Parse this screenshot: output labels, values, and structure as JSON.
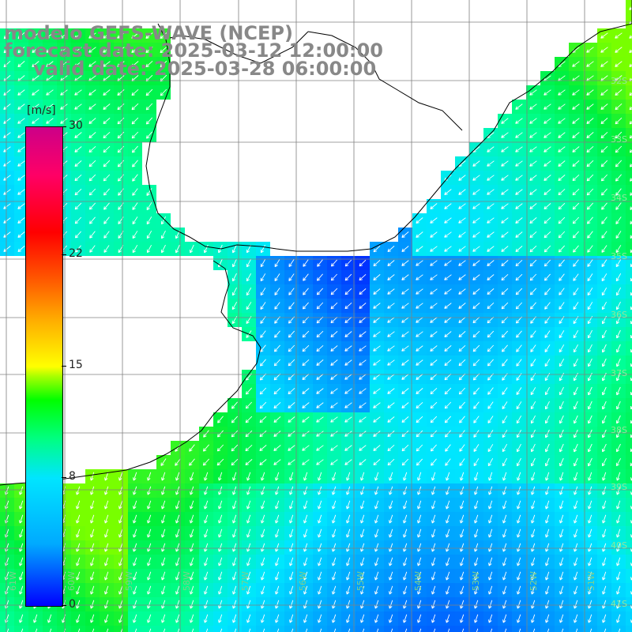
{
  "title": {
    "model": "modelo GEFS-WAVE (NCEP)",
    "forecast": "forecast date: 2025-03-12 12:00:00",
    "valid": "valid date: 2025-03-28 06:00:00"
  },
  "legend": {
    "units": "[m/s]",
    "ticks": [
      {
        "label": "30",
        "value": 30
      },
      {
        "label": "22",
        "value": 22
      },
      {
        "label": "15",
        "value": 15
      },
      {
        "label": "8",
        "value": 8
      },
      {
        "label": "0",
        "value": 0
      }
    ],
    "range": [
      0,
      30
    ],
    "colors": [
      "#0000ff",
      "#00aaff",
      "#00e5ff",
      "#00ff80",
      "#00ff00",
      "#ffff00",
      "#ff5a00",
      "#ff0000",
      "#cc0088"
    ]
  },
  "map": {
    "latitude_labels": [
      "32S",
      "33S",
      "34S",
      "35S",
      "36S",
      "37S",
      "38S",
      "39S",
      "40S",
      "41S"
    ],
    "longitude_labels": [
      "61W",
      "60W",
      "59W",
      "58W",
      "57W",
      "56W",
      "55W",
      "54W",
      "53W",
      "52W",
      "51W"
    ],
    "field": "wind speed and direction",
    "colors": {
      "land": "#ffffff",
      "grid": "#808080",
      "coast": "#000000",
      "arrows": "#ffffff"
    }
  }
}
